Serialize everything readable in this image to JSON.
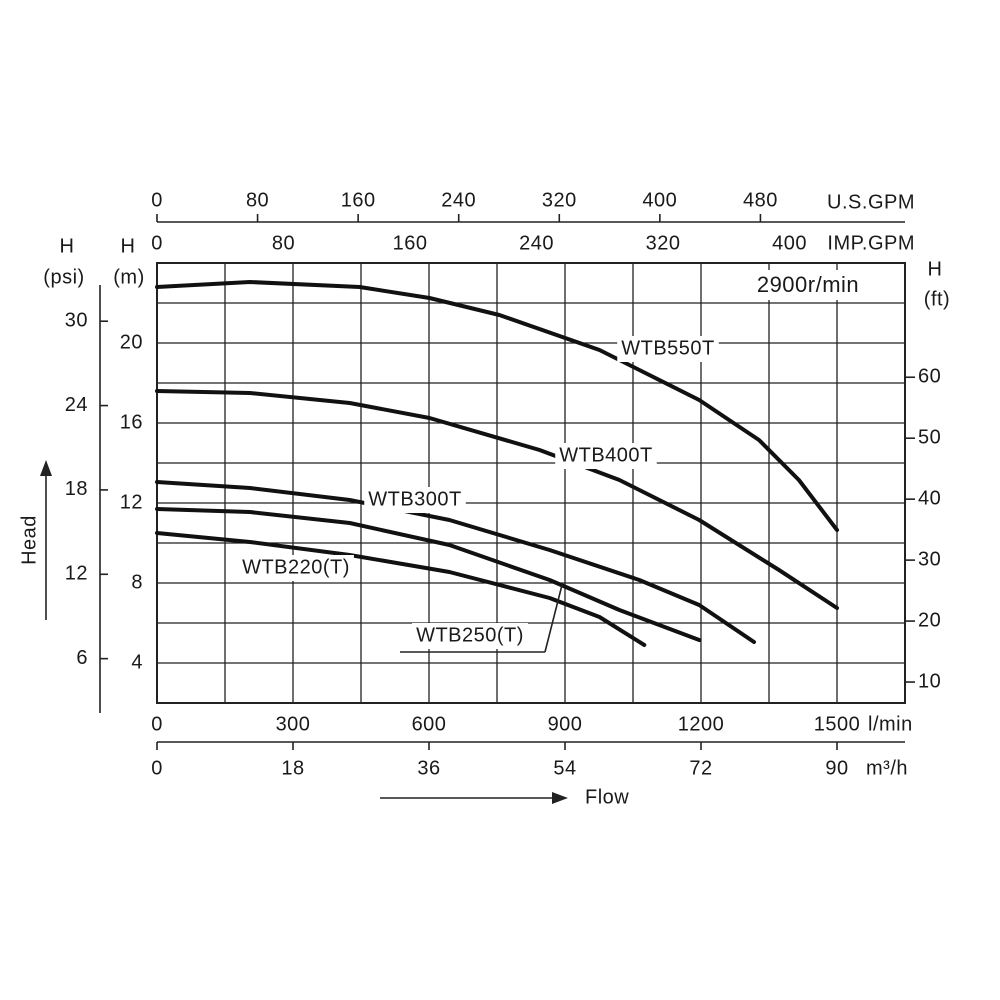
{
  "chart_data": {
    "type": "line",
    "annotation": "2900r/min",
    "x_axis_label": "Flow",
    "y_axis_label": "Head",
    "x_unit": "l/min",
    "y_title": "H",
    "y_unit": "(m)",
    "xlim": [
      0,
      1650
    ],
    "xticks": [
      0,
      300,
      600,
      900,
      1200,
      1500
    ],
    "ylim": [
      2,
      24
    ],
    "yticks": [
      4,
      8,
      12,
      16,
      20
    ],
    "grid": true,
    "xgrid": [
      0,
      150,
      300,
      450,
      600,
      750,
      900,
      1050,
      1200,
      1350,
      1500,
      1650
    ],
    "ygrid": [
      2,
      4,
      6,
      8,
      10,
      12,
      14,
      16,
      18,
      20,
      22,
      24
    ],
    "psi_axis": {
      "title": "H",
      "unit": "(psi)",
      "lim": [
        2.845,
        34.14
      ],
      "ticks": [
        6,
        12,
        18,
        24,
        30
      ]
    },
    "ft_axis": {
      "title": "H",
      "unit": "(ft)",
      "lim": [
        6.56,
        78.74
      ],
      "ticks": [
        10,
        20,
        30,
        40,
        50,
        60
      ]
    },
    "usgpm_axis": {
      "unit": "U.S.GPM",
      "lim": [
        0,
        595
      ],
      "ticks": [
        0,
        80,
        160,
        240,
        320,
        400,
        480
      ]
    },
    "impgpm_axis": {
      "unit": "IMP.GPM",
      "lim": [
        0,
        473
      ],
      "ticks": [
        0,
        80,
        160,
        240,
        320,
        400
      ]
    },
    "m3h_axis": {
      "unit": "m³/h",
      "lim": [
        0,
        99
      ],
      "ticks": [
        0,
        18,
        36,
        54,
        72,
        90
      ]
    },
    "series": [
      {
        "name": "WTB550T",
        "color": "#111111",
        "x": [
          0,
          205,
          447,
          601,
          755,
          976,
          1196,
          1328,
          1416,
          1500
        ],
        "values": [
          22.8,
          23.05,
          22.8,
          22.25,
          21.4,
          19.65,
          17.15,
          15.15,
          13.15,
          10.65
        ]
      },
      {
        "name": "WTB400T",
        "color": "#111111",
        "x": [
          0,
          205,
          425,
          601,
          844,
          1020,
          1196,
          1372,
          1500
        ],
        "values": [
          17.6,
          17.5,
          17,
          16.25,
          14.65,
          13.15,
          11.15,
          8.65,
          6.75
        ]
      },
      {
        "name": "WTB300T",
        "color": "#111111",
        "x": [
          0,
          205,
          425,
          645,
          866,
          1064,
          1196,
          1317
        ],
        "values": [
          13.05,
          12.75,
          12.15,
          11.15,
          9.65,
          8.15,
          6.9,
          5.05
        ]
      },
      {
        "name": "WTB250(T)",
        "color": "#111111",
        "x": [
          0,
          205,
          425,
          645,
          866,
          1020,
          1196
        ],
        "values": [
          11.7,
          11.55,
          11,
          9.9,
          8.15,
          6.65,
          5.15
        ]
      },
      {
        "name": "WTB220(T)",
        "color": "#111111",
        "x": [
          0,
          205,
          425,
          645,
          866,
          976,
          1075
        ],
        "values": [
          10.5,
          10.05,
          9.4,
          8.55,
          7.25,
          6.3,
          4.9
        ]
      }
    ]
  }
}
